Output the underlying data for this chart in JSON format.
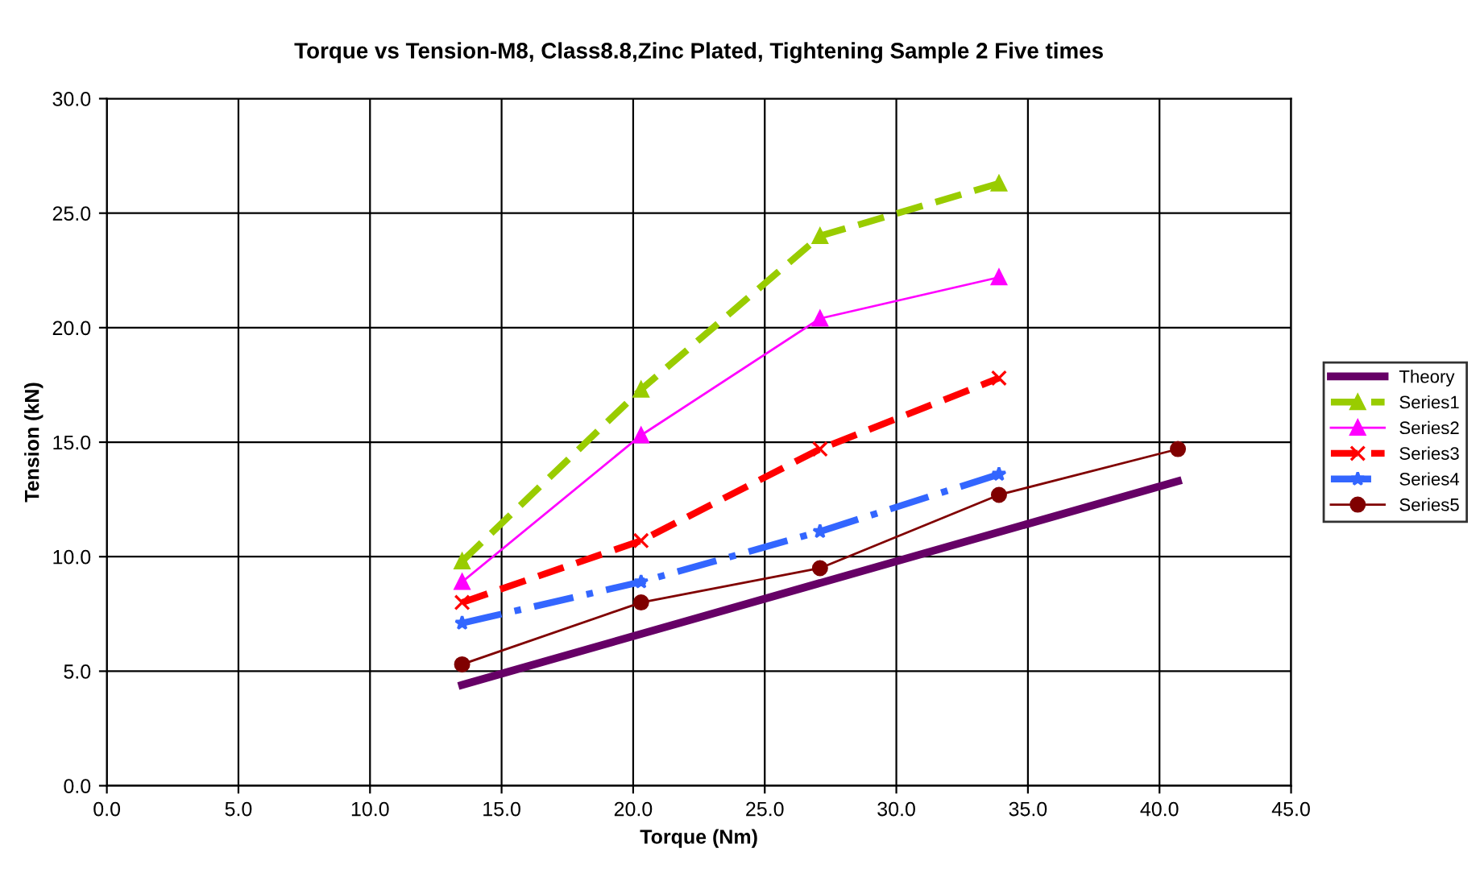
{
  "chart_data": {
    "type": "line",
    "title": "Torque vs Tension-M8, Class8.8,Zinc Plated, Tightening Sample 2 Five times",
    "xlabel": "Torque (Nm)",
    "ylabel": "Tension (kN)",
    "xlim": [
      0,
      45
    ],
    "xticks": [
      {
        "value": 0,
        "label": "0.0"
      },
      {
        "value": 5,
        "label": "5.0"
      },
      {
        "value": 10,
        "label": "10.0"
      },
      {
        "value": 15,
        "label": "15.0"
      },
      {
        "value": 20,
        "label": "20.0"
      },
      {
        "value": 25,
        "label": "25.0"
      },
      {
        "value": 30,
        "label": "30.0"
      },
      {
        "value": 35,
        "label": "35.0"
      },
      {
        "value": 40,
        "label": "40.0"
      },
      {
        "value": 45,
        "label": "45.0"
      }
    ],
    "ylim": [
      0,
      30
    ],
    "yticks": [
      {
        "value": 0,
        "label": "0.0"
      },
      {
        "value": 5,
        "label": "5.0"
      },
      {
        "value": 10,
        "label": "10.0"
      },
      {
        "value": 15,
        "label": "15.0"
      },
      {
        "value": 20,
        "label": "20.0"
      },
      {
        "value": 25,
        "label": "25.0"
      },
      {
        "value": 30,
        "label": "30.0"
      }
    ],
    "grid": true,
    "legend": "right",
    "series": [
      {
        "name": "Theory",
        "color": "#660066",
        "x": [
          13.5,
          40.7
        ],
        "values": [
          4.4,
          13.3
        ],
        "marker": "none",
        "line_style": "solid"
      },
      {
        "name": "Series1",
        "color": "#99cc00",
        "x": [
          13.5,
          20.3,
          27.1,
          33.9
        ],
        "values": [
          9.8,
          17.3,
          24.0,
          26.3
        ],
        "marker": "triangle",
        "line_style": "dashed"
      },
      {
        "name": "Series2",
        "color": "#ff00ff",
        "x": [
          13.5,
          20.3,
          27.1,
          33.9
        ],
        "values": [
          8.9,
          15.3,
          20.4,
          22.2
        ],
        "marker": "triangle",
        "line_style": "solid"
      },
      {
        "name": "Series3",
        "color": "#ff0000",
        "x": [
          13.5,
          20.3,
          27.1,
          33.9
        ],
        "values": [
          8.0,
          10.7,
          14.7,
          17.8
        ],
        "marker": "cross",
        "line_style": "dashed"
      },
      {
        "name": "Series4",
        "color": "#3366ff",
        "x": [
          13.5,
          20.3,
          27.1,
          33.9
        ],
        "values": [
          7.1,
          8.9,
          11.1,
          13.6
        ],
        "marker": "star",
        "line_style": "dashdot"
      },
      {
        "name": "Series5",
        "color": "#800000",
        "x": [
          13.5,
          20.3,
          27.1,
          33.9,
          40.7
        ],
        "values": [
          5.3,
          8.0,
          9.5,
          12.7,
          14.7
        ],
        "marker": "circle",
        "line_style": "solid"
      }
    ]
  }
}
